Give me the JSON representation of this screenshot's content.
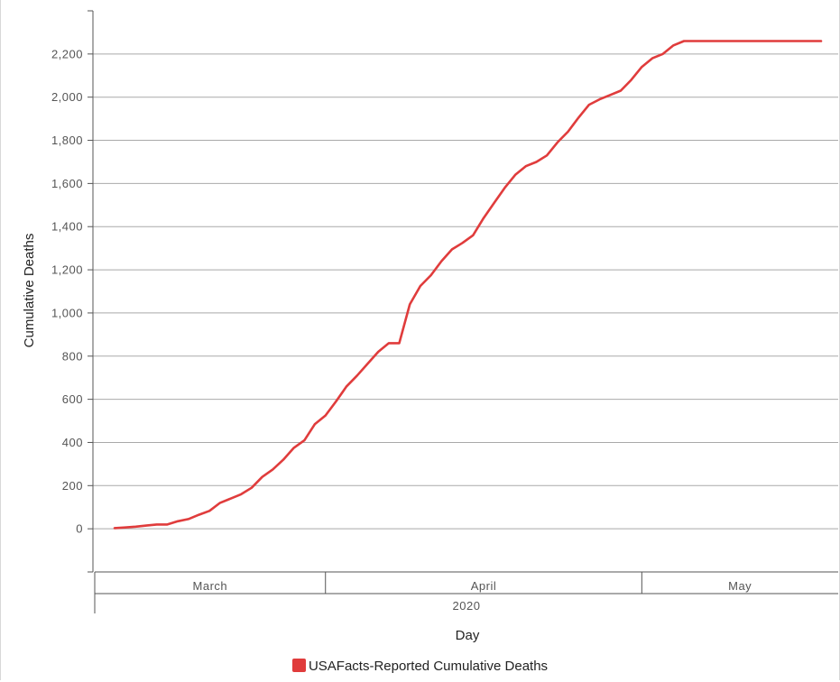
{
  "chart_data": {
    "type": "line",
    "ylabel": "Cumulative Deaths",
    "xlabel": "Day",
    "ylim": [
      -200,
      2400
    ],
    "yticks": [
      0,
      200,
      400,
      600,
      800,
      1000,
      1200,
      1400,
      1600,
      1800,
      2000,
      2200
    ],
    "ytick_labels": [
      "0",
      "200",
      "400",
      "600",
      "800",
      "1,000",
      "1,200",
      "1,400",
      "1,600",
      "1,800",
      "2,000",
      "2,200"
    ],
    "x_start": "2020-03-12",
    "x_end": "2020-05-18",
    "month_bands": [
      {
        "label": "March",
        "start": "2020-03-01",
        "end": "2020-03-31"
      },
      {
        "label": "April",
        "start": "2020-04-01",
        "end": "2020-04-30"
      },
      {
        "label": "May",
        "start": "2020-05-01",
        "end": "2020-05-19"
      }
    ],
    "year_label": "2020",
    "grid": true,
    "legend_position": "bottom-center",
    "series": [
      {
        "name": "USAFacts-Reported Cumulative Deaths",
        "color": "#e03c3c",
        "x": [
          "2020-03-12",
          "2020-03-13",
          "2020-03-14",
          "2020-03-15",
          "2020-03-16",
          "2020-03-17",
          "2020-03-18",
          "2020-03-19",
          "2020-03-20",
          "2020-03-21",
          "2020-03-22",
          "2020-03-23",
          "2020-03-24",
          "2020-03-25",
          "2020-03-26",
          "2020-03-27",
          "2020-03-28",
          "2020-03-29",
          "2020-03-30",
          "2020-03-31",
          "2020-04-01",
          "2020-04-02",
          "2020-04-03",
          "2020-04-04",
          "2020-04-05",
          "2020-04-06",
          "2020-04-07",
          "2020-04-08",
          "2020-04-09",
          "2020-04-10",
          "2020-04-11",
          "2020-04-12",
          "2020-04-13",
          "2020-04-14",
          "2020-04-15",
          "2020-04-16",
          "2020-04-17",
          "2020-04-18",
          "2020-04-19",
          "2020-04-20",
          "2020-04-21",
          "2020-04-22",
          "2020-04-23",
          "2020-04-24",
          "2020-04-25",
          "2020-04-26",
          "2020-04-27",
          "2020-04-28",
          "2020-04-29",
          "2020-04-30",
          "2020-05-01",
          "2020-05-02",
          "2020-05-03",
          "2020-05-04",
          "2020-05-05",
          "2020-05-06",
          "2020-05-07",
          "2020-05-08",
          "2020-05-09",
          "2020-05-10",
          "2020-05-11",
          "2020-05-12",
          "2020-05-13",
          "2020-05-14",
          "2020-05-15",
          "2020-05-16",
          "2020-05-17",
          "2020-05-18"
        ],
        "values": [
          3,
          6,
          10,
          15,
          20,
          20,
          35,
          45,
          65,
          83,
          120,
          140,
          160,
          190,
          240,
          275,
          320,
          375,
          410,
          485,
          525,
          590,
          660,
          710,
          765,
          820,
          860,
          860,
          1040,
          1125,
          1175,
          1240,
          1295,
          1325,
          1360,
          1440,
          1510,
          1580,
          1640,
          1680,
          1700,
          1730,
          1790,
          1840,
          1905,
          1965,
          1990,
          2010,
          2030,
          2080,
          2140,
          2180,
          2200,
          2240,
          2260,
          2260,
          2260,
          2260,
          2260,
          2260,
          2260,
          2260,
          2260,
          2260,
          2260,
          2260,
          2260,
          2260
        ]
      }
    ]
  }
}
